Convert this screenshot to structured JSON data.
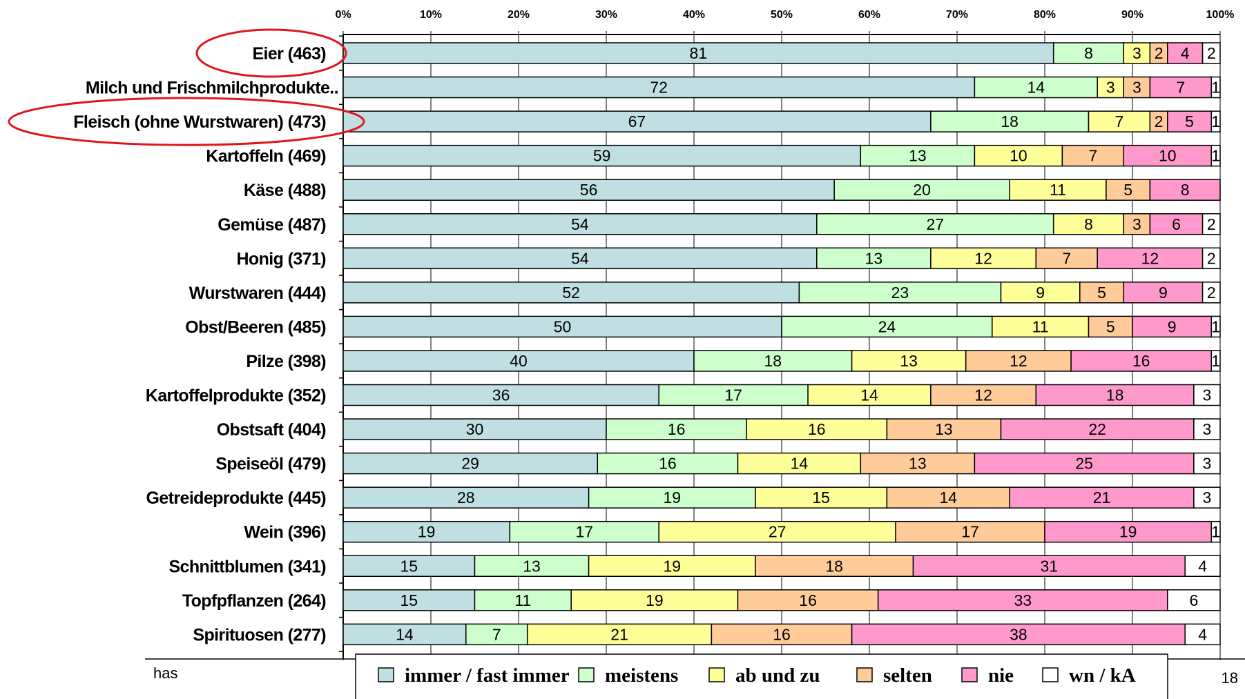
{
  "chart_data": {
    "type": "bar",
    "orientation": "horizontal",
    "stacked": true,
    "xlim": [
      0,
      100
    ],
    "x_tick_labels": [
      "0%",
      "10%",
      "20%",
      "30%",
      "40%",
      "50%",
      "60%",
      "70%",
      "80%",
      "90%",
      "100%"
    ],
    "categories": [
      "Eier (463)",
      "Milch und Frischmilchprodukte..",
      "Fleisch (ohne Wurstwaren) (473)",
      "Kartoffeln (469)",
      "Käse (488)",
      "Gemüse (487)",
      "Honig (371)",
      "Wurstwaren (444)",
      "Obst/Beeren (485)",
      "Pilze (398)",
      "Kartoffelprodukte (352)",
      "Obstsaft (404)",
      "Speiseöl (479)",
      "Getreideprodukte (445)",
      "Wein (396)",
      "Schnittblumen (341)",
      "Topfpflanzen (264)",
      "Spirituosen (277)"
    ],
    "highlighted_categories": [
      "Eier (463)",
      "Fleisch (ohne Wurstwaren) (473)"
    ],
    "series": [
      {
        "name": "immer / fast immer",
        "color": "#bfdfe2",
        "values": [
          81,
          72,
          67,
          59,
          56,
          54,
          54,
          52,
          50,
          40,
          36,
          30,
          29,
          28,
          19,
          15,
          15,
          14
        ]
      },
      {
        "name": "meistens",
        "color": "#ccffcc",
        "values": [
          8,
          14,
          18,
          13,
          20,
          27,
          13,
          23,
          24,
          18,
          17,
          16,
          16,
          19,
          17,
          13,
          11,
          7
        ]
      },
      {
        "name": "ab und zu",
        "color": "#ffff99",
        "values": [
          3,
          3,
          7,
          10,
          11,
          8,
          12,
          9,
          11,
          13,
          14,
          16,
          14,
          15,
          27,
          19,
          19,
          21
        ]
      },
      {
        "name": "selten",
        "color": "#ffcc99",
        "values": [
          2,
          3,
          2,
          7,
          5,
          3,
          7,
          5,
          5,
          12,
          12,
          13,
          13,
          14,
          17,
          18,
          16,
          16
        ]
      },
      {
        "name": "nie",
        "color": "#ff99cc",
        "values": [
          4,
          7,
          5,
          10,
          8,
          6,
          12,
          9,
          9,
          16,
          18,
          22,
          25,
          21,
          19,
          31,
          33,
          38
        ]
      },
      {
        "name": "wn / kA",
        "color": "#ffffff",
        "values": [
          2,
          1,
          1,
          1,
          null,
          2,
          2,
          2,
          1,
          1,
          3,
          3,
          3,
          3,
          1,
          4,
          6,
          4
        ]
      }
    ],
    "legend_position": "bottom"
  },
  "footer": {
    "left_text": "has",
    "page_number": "18"
  }
}
